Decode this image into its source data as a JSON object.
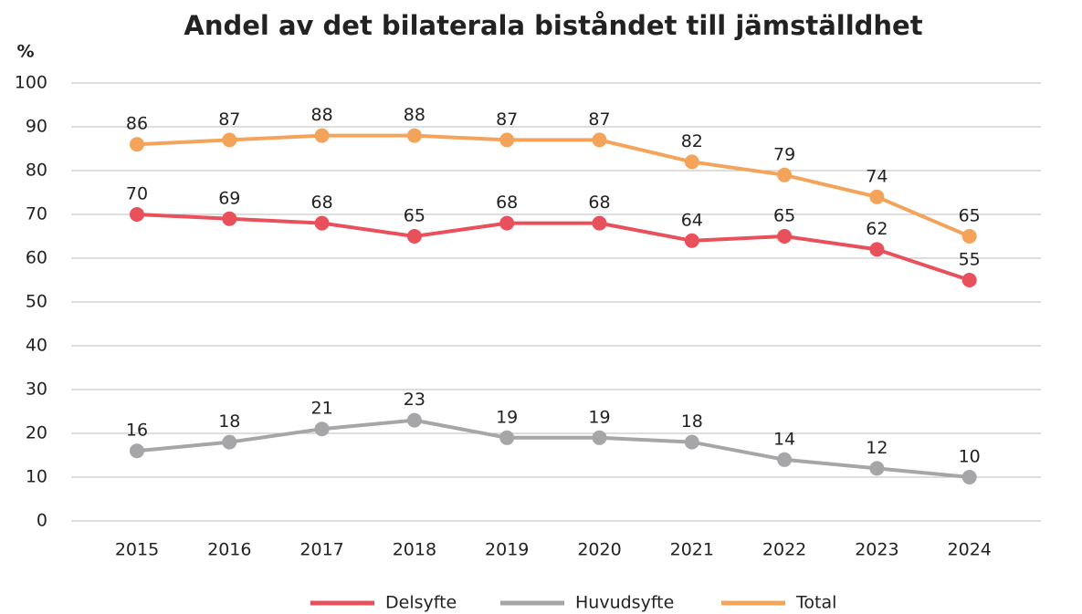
{
  "chart_data": {
    "type": "line",
    "title": "Andel av det bilaterala biståndet till jämställdhet",
    "y_label": "%",
    "categories": [
      "2015",
      "2016",
      "2017",
      "2018",
      "2019",
      "2020",
      "2021",
      "2022",
      "2023",
      "2024"
    ],
    "series": [
      {
        "name": "Delsyfte",
        "color": "#e8505b",
        "values": [
          70,
          69,
          68,
          65,
          68,
          68,
          64,
          65,
          62,
          55
        ]
      },
      {
        "name": "Huvudsyfte",
        "color": "#a6a6a8",
        "values": [
          16,
          18,
          21,
          23,
          19,
          19,
          18,
          14,
          12,
          10
        ]
      },
      {
        "name": "Total",
        "color": "#f4a45a",
        "values": [
          86,
          87,
          88,
          88,
          87,
          87,
          82,
          79,
          74,
          65
        ]
      }
    ],
    "ylim": [
      0,
      100
    ],
    "yticks": [
      0,
      10,
      20,
      30,
      40,
      50,
      60,
      70,
      80,
      90,
      100
    ],
    "grid": true,
    "legend": "bottom"
  }
}
